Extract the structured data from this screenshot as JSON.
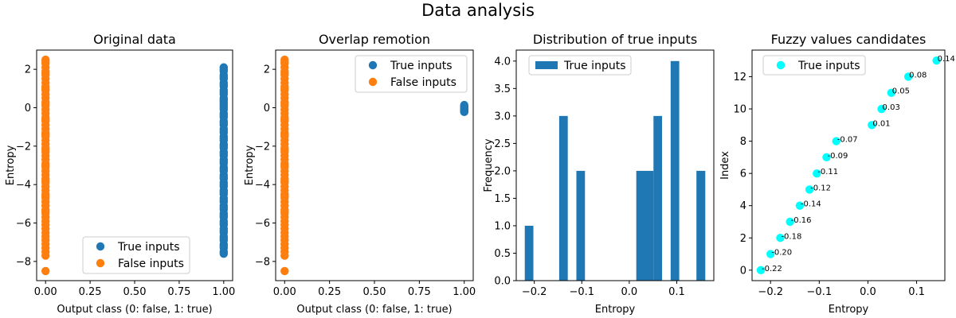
{
  "figure": {
    "title": "Data analysis"
  },
  "chart_data": [
    {
      "type": "scatter",
      "title": "Original data",
      "xlabel": "Output class (0: false, 1: true)",
      "ylabel": "Entropy",
      "xlim": [
        -0.05,
        1.05
      ],
      "ylim": [
        -9.0,
        3.0
      ],
      "xticks": [
        0.0,
        0.25,
        0.5,
        0.75,
        1.0
      ],
      "xtick_labels": [
        "0.00",
        "0.25",
        "0.50",
        "0.75",
        "1.00"
      ],
      "yticks": [
        -8,
        -6,
        -4,
        -2,
        0,
        2
      ],
      "ytick_labels": [
        "−8",
        "−6",
        "−4",
        "−2",
        "0",
        "2"
      ],
      "legend": "lower-center",
      "series": [
        {
          "name": "True inputs",
          "color": "#1f77b4",
          "x": [
            1,
            1,
            1,
            1,
            1,
            1,
            1,
            1,
            1,
            1,
            1,
            1,
            1,
            1,
            1,
            1,
            1,
            1,
            1,
            1,
            1,
            1,
            1,
            1,
            1,
            1,
            1,
            1,
            1,
            1,
            1,
            1,
            1,
            1,
            1,
            1,
            1,
            1,
            1,
            1,
            1,
            1,
            1,
            1,
            1,
            1,
            1,
            1,
            1,
            1,
            1,
            1,
            1,
            1,
            1,
            1,
            1,
            1,
            1,
            1,
            1,
            1,
            1,
            1,
            1,
            1,
            1,
            1,
            1,
            1,
            1,
            1,
            1,
            1,
            1
          ],
          "y": [
            2.1,
            1.9,
            1.7,
            1.5,
            1.3,
            1.1,
            0.9,
            0.7,
            0.5,
            0.3,
            0.1,
            -0.1,
            -0.3,
            -0.5,
            -0.7,
            -0.9,
            -1.1,
            -1.3,
            -1.5,
            -1.7,
            -1.9,
            -2.1,
            -2.3,
            -2.5,
            -2.7,
            -2.9,
            -3.1,
            -3.3,
            -3.5,
            -3.7,
            -3.9,
            -4.1,
            -4.3,
            -4.5,
            -4.7,
            -4.9,
            -5.1,
            -5.3,
            -5.5,
            -5.7,
            -5.9,
            -6.1,
            -6.3,
            -6.5,
            -6.7,
            -6.9,
            -7.1,
            -7.3,
            -7.5,
            2.0,
            1.6,
            1.2,
            0.8,
            0.4,
            0.0,
            -0.4,
            -0.8,
            -1.2,
            -1.6,
            -2.0,
            -2.4,
            -2.8,
            -3.2,
            -3.6,
            -4.0,
            -4.4,
            -4.8,
            -5.2,
            -5.6,
            -6.0,
            -6.4,
            -6.8,
            -7.2,
            -7.6,
            0.2
          ]
        },
        {
          "name": "False inputs",
          "color": "#ff7f0e",
          "x": [
            0,
            0,
            0,
            0,
            0,
            0,
            0,
            0,
            0,
            0,
            0,
            0,
            0,
            0,
            0,
            0,
            0,
            0,
            0,
            0,
            0,
            0,
            0,
            0,
            0,
            0,
            0,
            0,
            0,
            0,
            0,
            0,
            0,
            0,
            0,
            0,
            0,
            0,
            0,
            0,
            0,
            0,
            0,
            0,
            0,
            0,
            0,
            0,
            0,
            0,
            0,
            0,
            0,
            0,
            0,
            0,
            0,
            0,
            0,
            0,
            0,
            0,
            0,
            0
          ],
          "y": [
            2.5,
            2.3,
            2.1,
            1.9,
            1.7,
            1.5,
            1.3,
            1.1,
            0.9,
            0.7,
            0.5,
            0.3,
            0.1,
            -0.1,
            -0.3,
            -0.5,
            -0.7,
            -0.9,
            -1.1,
            -1.3,
            -1.5,
            -1.7,
            -1.9,
            -2.1,
            -2.3,
            -2.5,
            -2.7,
            -2.9,
            -3.1,
            -3.3,
            -3.5,
            -3.7,
            -3.9,
            -4.1,
            -4.3,
            -4.5,
            -4.7,
            -4.9,
            -5.1,
            -5.3,
            -5.5,
            -5.7,
            -5.9,
            -6.1,
            -6.3,
            -6.5,
            -6.7,
            -6.9,
            -7.1,
            -7.3,
            -7.5,
            -7.7,
            -8.5,
            2.4,
            1.8,
            1.0,
            0.2,
            -0.6,
            -1.4,
            -2.2,
            -3.0,
            -3.8,
            -4.6,
            -5.4
          ]
        }
      ]
    },
    {
      "type": "scatter",
      "title": "Overlap remotion",
      "xlabel": "Output class (0: false, 1: true)",
      "ylabel": "Entropy",
      "xlim": [
        -0.05,
        1.05
      ],
      "ylim": [
        -9.0,
        3.0
      ],
      "xticks": [
        0.0,
        0.25,
        0.5,
        0.75,
        1.0
      ],
      "xtick_labels": [
        "0.00",
        "0.25",
        "0.50",
        "0.75",
        "1.00"
      ],
      "yticks": [
        -8,
        -6,
        -4,
        -2,
        0,
        2
      ],
      "ytick_labels": [
        "−8",
        "−6",
        "−4",
        "−2",
        "0",
        "2"
      ],
      "legend": "upper-right",
      "series": [
        {
          "name": "True inputs",
          "color": "#1f77b4",
          "x": [
            1,
            1,
            1,
            1,
            1,
            1,
            1,
            1,
            1,
            1,
            1,
            1,
            1,
            1
          ],
          "y": [
            -0.22,
            -0.2,
            -0.18,
            -0.16,
            -0.14,
            -0.12,
            -0.11,
            -0.09,
            -0.07,
            0.01,
            0.03,
            0.05,
            0.08,
            0.14
          ]
        },
        {
          "name": "False inputs",
          "color": "#ff7f0e",
          "x": [
            0,
            0,
            0,
            0,
            0,
            0,
            0,
            0,
            0,
            0,
            0,
            0,
            0,
            0,
            0,
            0,
            0,
            0,
            0,
            0,
            0,
            0,
            0,
            0,
            0,
            0,
            0,
            0,
            0,
            0,
            0,
            0,
            0,
            0,
            0,
            0,
            0,
            0,
            0,
            0,
            0,
            0,
            0,
            0,
            0,
            0,
            0,
            0,
            0,
            0,
            0,
            0,
            0,
            0,
            0,
            0,
            0,
            0,
            0,
            0,
            0,
            0,
            0,
            0
          ],
          "y": [
            2.5,
            2.3,
            2.1,
            1.9,
            1.7,
            1.5,
            1.3,
            1.1,
            0.9,
            0.7,
            0.5,
            0.3,
            0.1,
            -0.1,
            -0.3,
            -0.5,
            -0.7,
            -0.9,
            -1.1,
            -1.3,
            -1.5,
            -1.7,
            -1.9,
            -2.1,
            -2.3,
            -2.5,
            -2.7,
            -2.9,
            -3.1,
            -3.3,
            -3.5,
            -3.7,
            -3.9,
            -4.1,
            -4.3,
            -4.5,
            -4.7,
            -4.9,
            -5.1,
            -5.3,
            -5.5,
            -5.7,
            -5.9,
            -6.1,
            -6.3,
            -6.5,
            -6.7,
            -6.9,
            -7.1,
            -7.3,
            -7.5,
            -7.7,
            -8.5,
            2.4,
            1.8,
            1.0,
            0.2,
            -0.6,
            -1.4,
            -2.2,
            -3.0,
            -3.8,
            -4.6,
            -5.4
          ]
        }
      ]
    },
    {
      "type": "bar",
      "title": "Distribution of true inputs",
      "xlabel": "Entropy",
      "ylabel": "Frequency",
      "xlim": [
        -0.238,
        0.178
      ],
      "ylim": [
        0.0,
        4.2
      ],
      "xticks": [
        -0.2,
        -0.1,
        0.0,
        0.1
      ],
      "xtick_labels": [
        "−0.2",
        "−0.1",
        "0.0",
        "0.1"
      ],
      "yticks": [
        0.0,
        0.5,
        1.0,
        1.5,
        2.0,
        2.5,
        3.0,
        3.5,
        4.0
      ],
      "ytick_labels": [
        "0.0",
        "0.5",
        "1.0",
        "1.5",
        "2.0",
        "2.5",
        "3.0",
        "3.5",
        "4.0"
      ],
      "legend": "upper-left",
      "color": "#1f77b4",
      "series_name": "True inputs",
      "bins": [
        {
          "x0": -0.22,
          "x1": -0.2019,
          "value": 1
        },
        {
          "x0": -0.1476,
          "x1": -0.1295,
          "value": 3
        },
        {
          "x0": -0.1114,
          "x1": -0.0933,
          "value": 2
        },
        {
          "x0": 0.0148,
          "x1": 0.0329,
          "value": 2
        },
        {
          "x0": 0.0329,
          "x1": 0.051,
          "value": 2
        },
        {
          "x0": 0.051,
          "x1": 0.069,
          "value": 3
        },
        {
          "x0": 0.0871,
          "x1": 0.1052,
          "value": 4
        },
        {
          "x0": 0.1414,
          "x1": 0.16,
          "value": 2
        }
      ]
    },
    {
      "type": "scatter",
      "title": "Fuzzy values candidates",
      "xlabel": "Entropy",
      "ylabel": "Index",
      "xlim": [
        -0.238,
        0.158
      ],
      "ylim": [
        -0.65,
        13.65
      ],
      "xticks": [
        -0.2,
        -0.1,
        0.0,
        0.1
      ],
      "xtick_labels": [
        "−0.2",
        "−0.1",
        "0.0",
        "0.1"
      ],
      "yticks": [
        0,
        2,
        4,
        6,
        8,
        10,
        12
      ],
      "ytick_labels": [
        "0",
        "2",
        "4",
        "6",
        "8",
        "10",
        "12"
      ],
      "legend": "upper-left",
      "series": [
        {
          "name": "True inputs",
          "color": "#00ffff",
          "x": [
            -0.22,
            -0.2,
            -0.18,
            -0.16,
            -0.14,
            -0.12,
            -0.105,
            -0.085,
            -0.065,
            0.008,
            0.028,
            0.048,
            0.083,
            0.141
          ],
          "y": [
            0,
            1,
            2,
            3,
            4,
            5,
            6,
            7,
            8,
            9,
            10,
            11,
            12,
            13
          ],
          "labels": [
            "-0.22",
            "-0.20",
            "-0.18",
            "-0.16",
            "-0.14",
            "-0.12",
            "-0.11",
            "-0.09",
            "-0.07",
            "0.01",
            "0.03",
            "0.05",
            "0.08",
            "0.14"
          ]
        }
      ]
    }
  ]
}
